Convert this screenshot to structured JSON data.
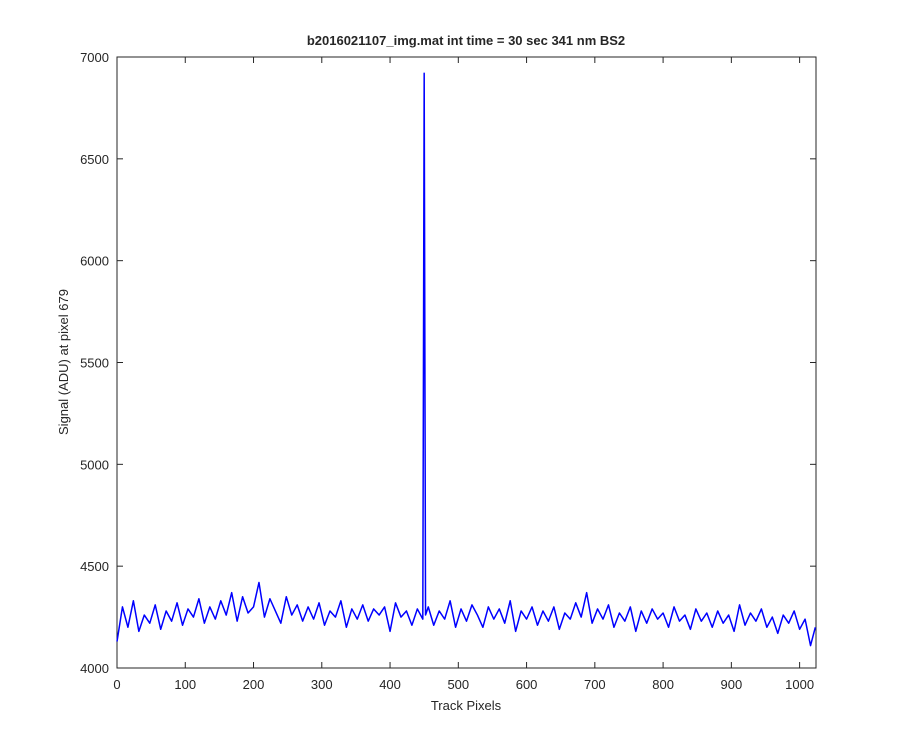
{
  "chart_data": {
    "type": "line",
    "title": "b2016021107_img.mat int time = 30 sec  341 nm BS2",
    "x_label": "Track Pixels",
    "y_label": "Signal (ADU) at pixel 679",
    "x": [
      0,
      8,
      16,
      24,
      32,
      40,
      48,
      56,
      64,
      72,
      80,
      88,
      96,
      104,
      112,
      120,
      128,
      136,
      144,
      152,
      160,
      168,
      176,
      184,
      192,
      200,
      208,
      216,
      224,
      232,
      240,
      248,
      256,
      264,
      272,
      280,
      288,
      296,
      304,
      312,
      320,
      328,
      336,
      344,
      352,
      360,
      368,
      376,
      384,
      392,
      400,
      408,
      416,
      424,
      432,
      440,
      448,
      450,
      452,
      456,
      464,
      472,
      480,
      488,
      496,
      504,
      512,
      520,
      528,
      536,
      544,
      552,
      560,
      568,
      576,
      584,
      592,
      600,
      608,
      616,
      624,
      632,
      640,
      648,
      656,
      664,
      672,
      680,
      688,
      696,
      704,
      712,
      720,
      728,
      736,
      744,
      752,
      760,
      768,
      776,
      784,
      792,
      800,
      808,
      816,
      824,
      832,
      840,
      848,
      856,
      864,
      872,
      880,
      888,
      896,
      904,
      912,
      920,
      928,
      936,
      944,
      952,
      960,
      968,
      976,
      984,
      992,
      1000,
      1008,
      1016,
      1023
    ],
    "series": [
      {
        "name": "signal",
        "color": "#0000ff",
        "values": [
          4130,
          4300,
          4200,
          4330,
          4180,
          4260,
          4220,
          4310,
          4190,
          4280,
          4230,
          4320,
          4210,
          4290,
          4250,
          4340,
          4220,
          4300,
          4240,
          4330,
          4260,
          4370,
          4230,
          4350,
          4270,
          4300,
          4420,
          4250,
          4340,
          4280,
          4220,
          4350,
          4260,
          4310,
          4230,
          4300,
          4240,
          4320,
          4210,
          4280,
          4250,
          4330,
          4200,
          4290,
          4240,
          4310,
          4230,
          4290,
          4260,
          4300,
          4180,
          4320,
          4250,
          4280,
          4210,
          4290,
          4240,
          6920,
          4260,
          4300,
          4210,
          4280,
          4240,
          4330,
          4200,
          4290,
          4230,
          4310,
          4260,
          4200,
          4300,
          4240,
          4290,
          4220,
          4330,
          4180,
          4280,
          4240,
          4300,
          4210,
          4280,
          4230,
          4300,
          4190,
          4270,
          4240,
          4320,
          4250,
          4370,
          4220,
          4290,
          4240,
          4310,
          4200,
          4270,
          4230,
          4300,
          4180,
          4280,
          4220,
          4290,
          4240,
          4270,
          4200,
          4300,
          4230,
          4260,
          4190,
          4290,
          4230,
          4270,
          4200,
          4280,
          4220,
          4260,
          4180,
          4310,
          4210,
          4270,
          4230,
          4290,
          4200,
          4250,
          4170,
          4260,
          4220,
          4280,
          4190,
          4240,
          4110,
          4200
        ]
      }
    ],
    "xlim": [
      0,
      1024
    ],
    "xticks": [
      0,
      100,
      200,
      300,
      400,
      500,
      600,
      700,
      800,
      900,
      1000
    ],
    "ylim": [
      4000,
      7000
    ],
    "yticks": [
      4000,
      4500,
      5000,
      5500,
      6000,
      6500,
      7000
    ],
    "grid": false
  }
}
